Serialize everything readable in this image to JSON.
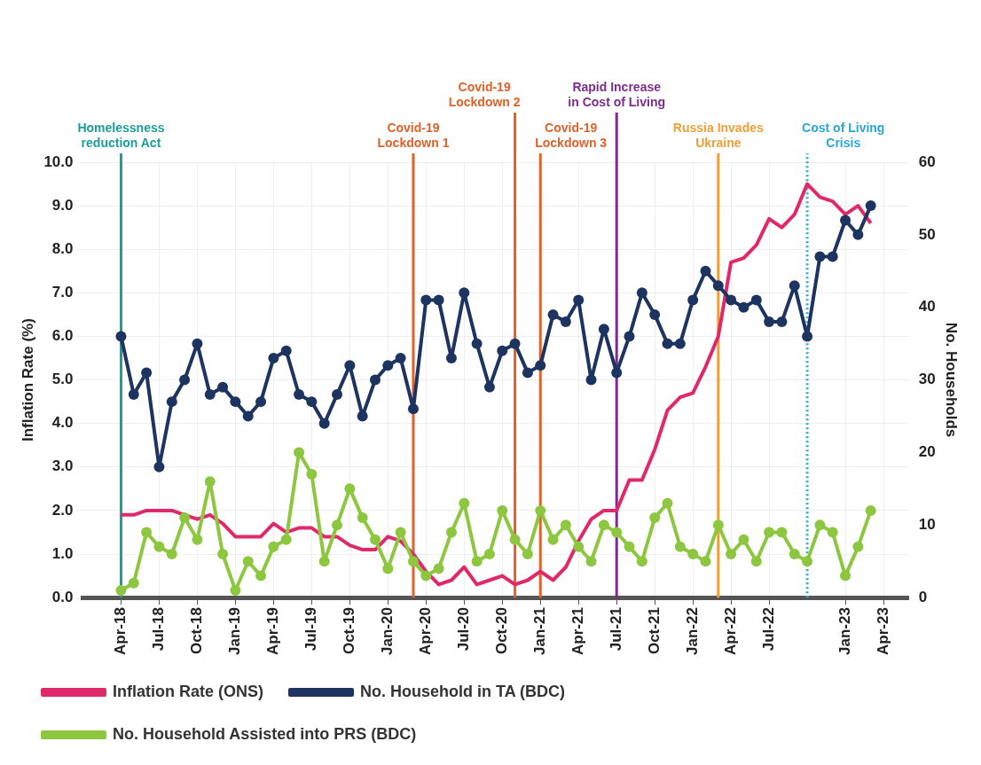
{
  "chart_data": {
    "type": "line",
    "ylabel": "Inflation Rate (%)",
    "y2label": "No. Households",
    "x": [
      "2018-04",
      "2018-05",
      "2018-06",
      "2018-07",
      "2018-08",
      "2018-09",
      "2018-10",
      "2018-11",
      "2018-12",
      "2019-01",
      "2019-02",
      "2019-03",
      "2019-04",
      "2019-05",
      "2019-06",
      "2019-07",
      "2019-08",
      "2019-09",
      "2019-10",
      "2019-11",
      "2019-12",
      "2020-01",
      "2020-02",
      "2020-03",
      "2020-04",
      "2020-05",
      "2020-06",
      "2020-07",
      "2020-08",
      "2020-09",
      "2020-10",
      "2020-11",
      "2020-12",
      "2021-01",
      "2021-02",
      "2021-03",
      "2021-04",
      "2021-05",
      "2021-06",
      "2021-07",
      "2021-08",
      "2021-09",
      "2021-10",
      "2021-11",
      "2021-12",
      "2022-01",
      "2022-02",
      "2022-03",
      "2022-04",
      "2022-05",
      "2022-06",
      "2022-07",
      "2022-08",
      "2022-09",
      "2022-10",
      "2022-11",
      "2022-12",
      "2023-01",
      "2023-02",
      "2023-03"
    ],
    "series": [
      {
        "name": "Inflation Rate (ONS)",
        "color": "#e0296b",
        "marker": "none",
        "values": [
          1.9,
          1.9,
          2.0,
          2.0,
          2.0,
          1.9,
          1.8,
          1.9,
          1.7,
          1.4,
          1.4,
          1.4,
          1.7,
          1.5,
          1.6,
          1.6,
          1.4,
          1.4,
          1.2,
          1.1,
          1.1,
          1.4,
          1.3,
          1.0,
          0.6,
          0.3,
          0.4,
          0.7,
          0.3,
          0.4,
          0.5,
          0.3,
          0.4,
          0.6,
          0.4,
          0.7,
          1.3,
          1.8,
          2.0,
          2.0,
          2.7,
          2.7,
          3.4,
          4.3,
          4.6,
          4.7,
          5.3,
          6.0,
          7.7,
          7.8,
          8.1,
          8.7,
          8.5,
          8.8,
          9.5,
          9.2,
          9.1,
          8.8,
          9.0,
          8.6
        ]
      },
      {
        "name": "No. Household in TA (BDC)",
        "color": "#1d3461",
        "axis": "y2",
        "marker": "circle",
        "values": [
          36,
          28,
          31,
          18,
          27,
          30,
          35,
          28,
          29,
          27,
          25,
          27,
          33,
          34,
          28,
          27,
          24,
          28,
          32,
          25,
          30,
          32,
          33,
          26,
          41,
          41,
          33,
          42,
          35,
          29,
          34,
          35,
          31,
          32,
          39,
          38,
          41,
          30,
          37,
          31,
          36,
          42,
          39,
          35,
          35,
          41,
          45,
          43,
          41,
          40,
          41,
          38,
          38,
          43,
          36,
          47,
          47,
          52,
          50,
          54
        ]
      },
      {
        "name": "No. Household Assisted into PRS (BDC)",
        "color": "#8dc63f",
        "axis": "y2",
        "marker": "circle",
        "values": [
          1,
          2,
          9,
          7,
          6,
          11,
          8,
          16,
          6,
          1,
          5,
          3,
          7,
          8,
          20,
          17,
          5,
          10,
          15,
          11,
          8,
          4,
          9,
          5,
          3,
          4,
          9,
          13,
          5,
          6,
          12,
          8,
          6,
          12,
          8,
          10,
          7,
          5,
          10,
          9,
          7,
          5,
          11,
          13,
          7,
          6,
          5,
          10,
          6,
          8,
          5,
          9,
          9,
          6,
          5,
          10,
          9,
          3,
          7,
          12
        ]
      }
    ],
    "xlim": [
      "2018-01",
      "2023-06"
    ],
    "xticks": [
      {
        "value": "2018-04",
        "label": "Apr-18"
      },
      {
        "value": "2018-07",
        "label": "Jul-18"
      },
      {
        "value": "2018-10",
        "label": "Oct-18"
      },
      {
        "value": "2019-01",
        "label": "Jan-19"
      },
      {
        "value": "2019-04",
        "label": "Apr-19"
      },
      {
        "value": "2019-07",
        "label": "Jul-19"
      },
      {
        "value": "2019-10",
        "label": "Oct-19"
      },
      {
        "value": "2020-01",
        "label": "Jan-20"
      },
      {
        "value": "2020-04",
        "label": "Apr-20"
      },
      {
        "value": "2020-07",
        "label": "Jul-20"
      },
      {
        "value": "2020-10",
        "label": "Oct-20"
      },
      {
        "value": "2021-01",
        "label": "Jan-21"
      },
      {
        "value": "2021-04",
        "label": "Apr-21"
      },
      {
        "value": "2021-07",
        "label": "Jul-21"
      },
      {
        "value": "2021-10",
        "label": "Oct-21"
      },
      {
        "value": "2022-01",
        "label": "Jan-22"
      },
      {
        "value": "2022-04",
        "label": "Apr-22"
      },
      {
        "value": "2022-07",
        "label": "Jul-22"
      },
      {
        "value": "2023-01",
        "label": "Jan-23"
      },
      {
        "value": "2023-04",
        "label": "Apr-23"
      }
    ],
    "ylim": [
      0,
      10
    ],
    "yticks": [
      {
        "value": 0,
        "label": "0.0"
      },
      {
        "value": 1,
        "label": "1.0"
      },
      {
        "value": 2,
        "label": "2.0"
      },
      {
        "value": 3,
        "label": "3.0"
      },
      {
        "value": 4,
        "label": "4.0"
      },
      {
        "value": 5,
        "label": "5.0"
      },
      {
        "value": 6,
        "label": "6.0"
      },
      {
        "value": 7,
        "label": "7.0"
      },
      {
        "value": 8,
        "label": "8.0"
      },
      {
        "value": 9,
        "label": "9.0"
      },
      {
        "value": 10,
        "label": "10.0"
      }
    ],
    "y2lim": [
      0,
      60
    ],
    "y2ticks": [
      0,
      10,
      20,
      30,
      40,
      50,
      60
    ],
    "ref_lines": [
      {
        "axis": "x",
        "value": "2018-04",
        "label": "Homelessness reduction Act",
        "color": "#1a9e9a"
      },
      {
        "axis": "x",
        "value": "2020-03",
        "label": "Covid-19 Lockdown 1",
        "color": "#e0622a"
      },
      {
        "axis": "x",
        "value": "2020-11",
        "label": "Covid-19 Lockdown 2",
        "color": "#e0622a"
      },
      {
        "axis": "x",
        "value": "2021-01",
        "label": "Covid-19 Lockdown 3",
        "color": "#e0622a"
      },
      {
        "axis": "x",
        "value": "2021-07",
        "label": "Rapid Increase in Cost of Living",
        "color": "#7b2d8e"
      },
      {
        "axis": "x",
        "value": "2022-03",
        "label": "Russia Invades Ukraine",
        "color": "#eea037"
      },
      {
        "axis": "x",
        "value": "2022-10",
        "label": "Cost of Living Crisis",
        "color": "#2aa7d6",
        "line_style": "dotted"
      }
    ],
    "grid": true,
    "legend": "bottom"
  }
}
